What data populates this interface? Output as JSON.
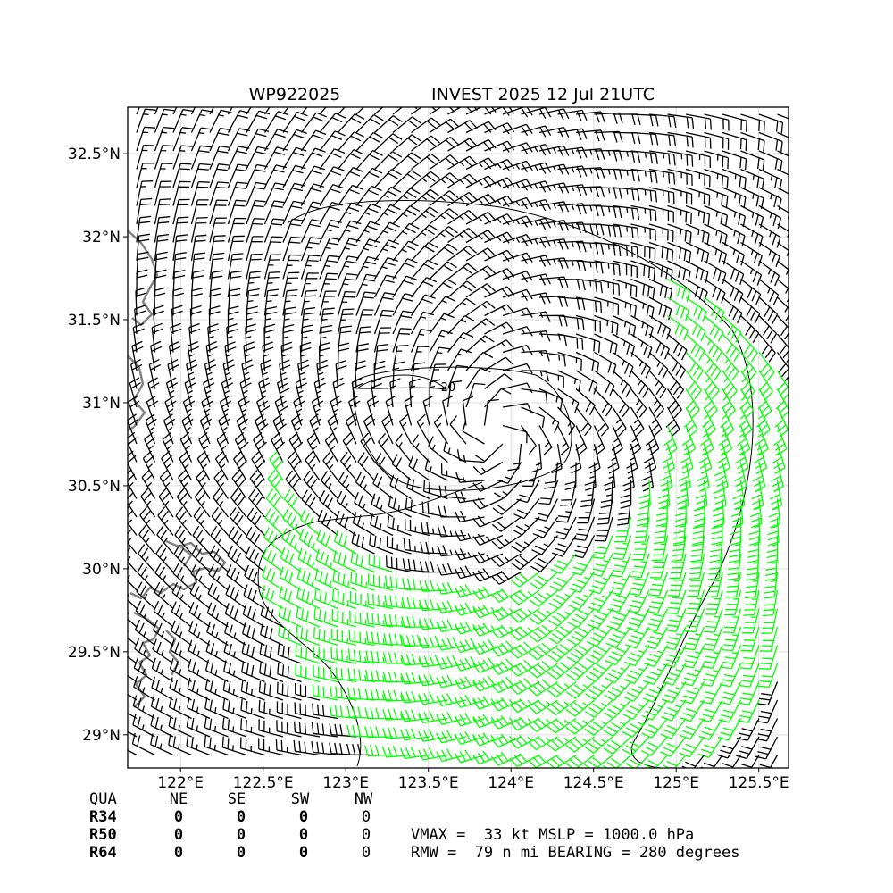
{
  "title": {
    "storm_id": "WP922025",
    "description": "INVEST 2025 12 Jul 21UTC"
  },
  "chart_data": {
    "type": "wind-barb-map",
    "xlim": [
      121.68,
      125.68
    ],
    "ylim": [
      28.8,
      32.78
    ],
    "x_ticks": [
      {
        "value": 122.0,
        "label": "122°E"
      },
      {
        "value": 122.5,
        "label": "122.5°E"
      },
      {
        "value": 123.0,
        "label": "123°E"
      },
      {
        "value": 123.5,
        "label": "123.5°E"
      },
      {
        "value": 124.0,
        "label": "124°E"
      },
      {
        "value": 124.5,
        "label": "124.5°E"
      },
      {
        "value": 125.0,
        "label": "125°E"
      },
      {
        "value": 125.5,
        "label": "125.5°E"
      }
    ],
    "y_ticks": [
      {
        "value": 29.0,
        "label": "29°N"
      },
      {
        "value": 29.5,
        "label": "29.5°N"
      },
      {
        "value": 30.0,
        "label": "30°N"
      },
      {
        "value": 30.5,
        "label": "30.5°N"
      },
      {
        "value": 31.0,
        "label": "31°N"
      },
      {
        "value": 31.5,
        "label": "31.5°N"
      },
      {
        "value": 32.0,
        "label": "32°N"
      },
      {
        "value": 32.5,
        "label": "32.5°N"
      }
    ],
    "grid": true,
    "center": {
      "lon": 123.92,
      "lat": 30.82
    },
    "rmw_nmi": 79,
    "vmax_kt": 33,
    "mslp_hpa": 1000.0,
    "contour_labels": [
      {
        "lon": 123.62,
        "lat": 31.09,
        "text": "20"
      }
    ],
    "colors": {
      "barb_default": "#000000",
      "barb_tropical_storm": "#00ff00",
      "coastline": "#808080",
      "gridline": "#dddddd"
    }
  },
  "wind_radii_table": {
    "header": [
      "QUA",
      "NE",
      "SE",
      "SW",
      "NW"
    ],
    "rows": [
      {
        "label": "R34",
        "values": [
          "0",
          "0",
          "0",
          "0"
        ]
      },
      {
        "label": "R50",
        "values": [
          "0",
          "0",
          "0",
          "0"
        ]
      },
      {
        "label": "R64",
        "values": [
          "0",
          "0",
          "0",
          "0"
        ]
      }
    ]
  },
  "summary": {
    "line1": "VMAX =  33 kt MSLP = 1000.0 hPa",
    "line2": "RMW =  79 n mi BEARING = 280 degrees"
  }
}
